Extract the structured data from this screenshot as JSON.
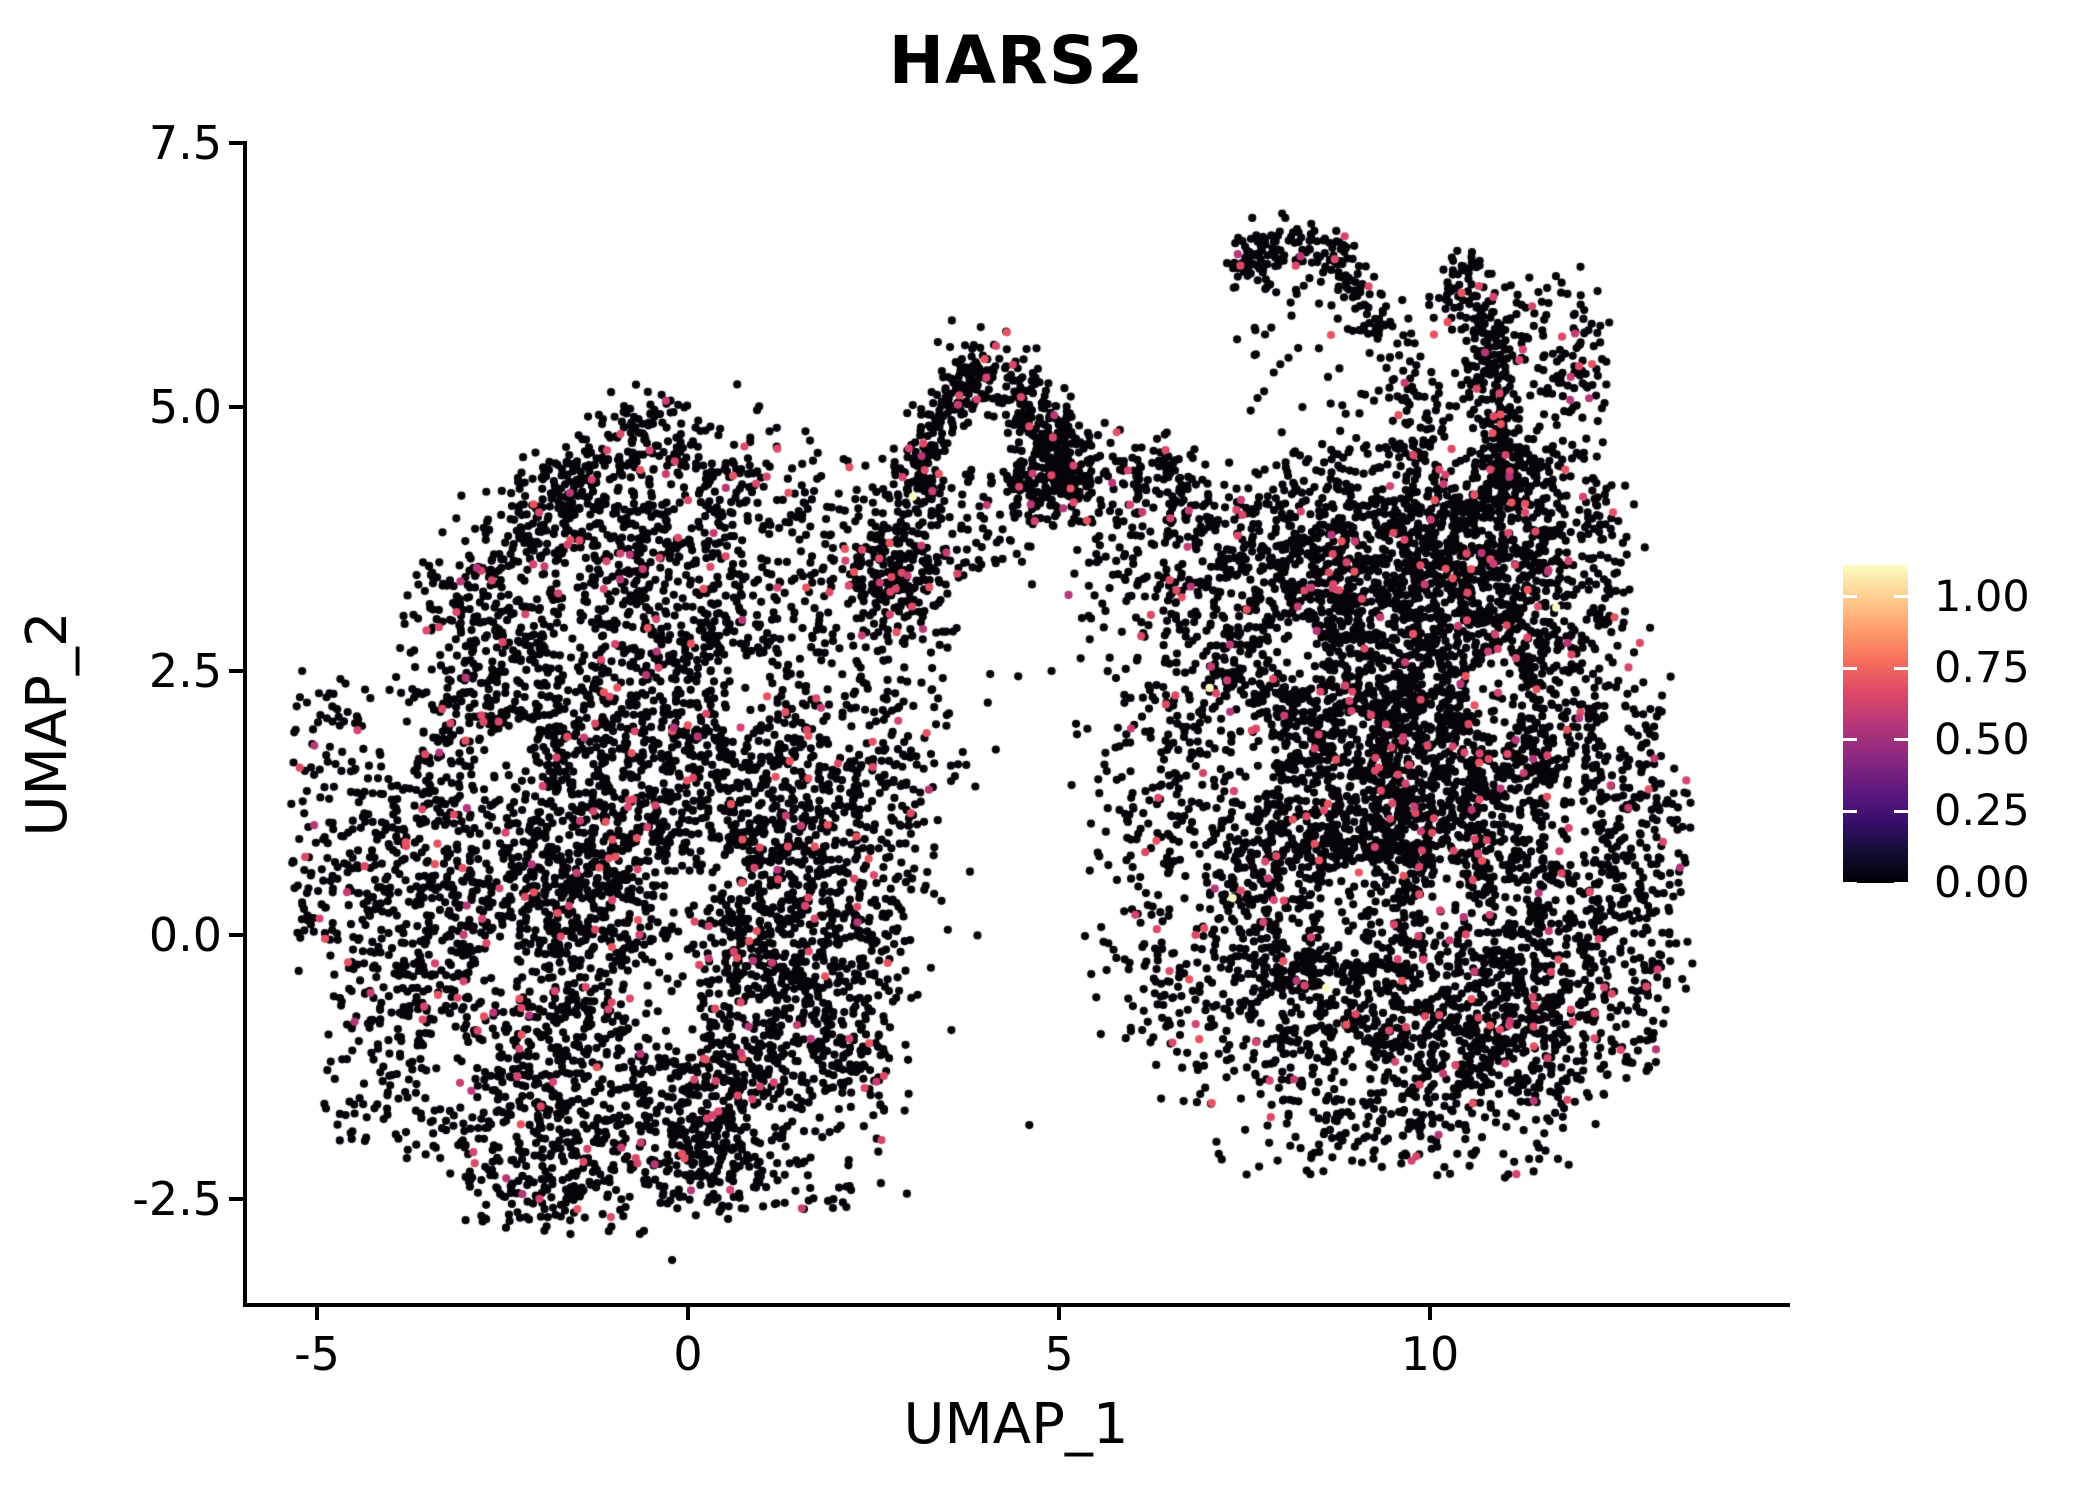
{
  "title": "HARS2",
  "axes": {
    "x": {
      "label": "UMAP_1",
      "tick_labels": [
        "-5",
        "0",
        "5",
        "10"
      ],
      "tick_values": [
        -5,
        0,
        5,
        10
      ]
    },
    "y": {
      "label": "UMAP_2",
      "tick_labels": [
        "7.5",
        "5.0",
        "2.5",
        "0.0",
        "-2.5"
      ],
      "tick_values": [
        7.5,
        5.0,
        2.5,
        0.0,
        -2.5
      ]
    }
  },
  "legend": {
    "tick_labels": [
      "1.00",
      "0.75",
      "0.50",
      "0.25",
      "0.00"
    ],
    "tick_values": [
      1.0,
      0.75,
      0.5,
      0.25,
      0.0
    ],
    "vmax": 1.11,
    "colormap": "magma",
    "gradient_stops": [
      "#000004",
      "#140e36",
      "#3b0f70",
      "#641a80",
      "#8c2981",
      "#b73779",
      "#de4968",
      "#f76f5c",
      "#fe9f6d",
      "#fecf92",
      "#fcfdbf"
    ]
  },
  "chart_data": {
    "type": "scatter",
    "title": "HARS2",
    "xlabel": "UMAP_1",
    "ylabel": "UMAP_2",
    "xlim": [
      -5.97,
      14.82
    ],
    "ylim": [
      -3.5,
      7.5
    ],
    "grid": false,
    "legend_position": "right",
    "point_radius_px": 4.1,
    "seed": 20240613,
    "colors": {
      "zero": "#050308",
      "low_mid": [
        "#de4968",
        "#e85362",
        "#d6456e",
        "#c83e72",
        "#b73779"
      ],
      "high": "#fbfcbf",
      "pink_fraction": 0.045
    },
    "clusters": [
      {
        "type": "blob",
        "cx": -1.15,
        "cy": 0.5,
        "rx": 2.9,
        "ry": 3.05,
        "n": 1600
      },
      {
        "type": "blob",
        "cx": 1.55,
        "cy": 1.1,
        "rx": 1.6,
        "ry": 2.45,
        "n": 700
      },
      {
        "type": "blob",
        "cx": -0.65,
        "cy": 3.7,
        "rx": 1.7,
        "ry": 1.2,
        "n": 470
      },
      {
        "type": "blob",
        "cx": -0.55,
        "cy": 4.7,
        "rx": 0.8,
        "ry": 0.5,
        "n": 95
      },
      {
        "type": "blob",
        "cx": -2.75,
        "cy": 2.3,
        "rx": 1.15,
        "ry": 1.05,
        "n": 210
      },
      {
        "type": "blob",
        "cx": -3.6,
        "cy": -0.3,
        "rx": 0.85,
        "ry": 1.9,
        "n": 260
      },
      {
        "type": "blob",
        "cx": -4.55,
        "cy": 0.9,
        "rx": 0.8,
        "ry": 1.5,
        "n": 130
      },
      {
        "type": "blob",
        "cx": -1.9,
        "cy": -1.6,
        "rx": 1.5,
        "ry": 1.0,
        "n": 290
      },
      {
        "type": "blob",
        "cx": 0.3,
        "cy": -1.7,
        "rx": 1.25,
        "ry": 0.9,
        "n": 260
      },
      {
        "type": "blob",
        "cx": 0.15,
        "cy": -2.2,
        "rx": 0.65,
        "ry": 0.4,
        "n": 70
      },
      {
        "type": "band",
        "pts": [
          [
            3.2,
            3.1
          ],
          [
            2.9,
            1.8
          ],
          [
            2.6,
            0.3
          ],
          [
            2.45,
            -1.2
          ],
          [
            2.3,
            -2.0
          ]
        ],
        "w": 0.45,
        "n": 230
      },
      {
        "type": "blob",
        "cx": 1.35,
        "cy": -0.4,
        "rx": 1.35,
        "ry": 1.6,
        "n": 350
      },
      {
        "type": "blob",
        "cx": -0.2,
        "cy": 1.9,
        "rx": 1.9,
        "ry": 1.25,
        "n": 420
      },
      {
        "type": "blob",
        "cx": -1.9,
        "cy": 0.4,
        "rx": 1.45,
        "ry": 1.5,
        "n": 330
      },
      {
        "type": "uniform",
        "x0": -5.35,
        "x1": -4.2,
        "y0": -0.5,
        "y1": 2.3,
        "n": 70
      },
      {
        "type": "uniform",
        "x0": -4.9,
        "x1": -3.9,
        "y0": -2.0,
        "y1": -0.5,
        "n": 45
      },
      {
        "type": "uniform",
        "x0": -3.0,
        "x1": -0.5,
        "y0": -2.85,
        "y1": -2.3,
        "n": 55
      },
      {
        "type": "uniform",
        "x0": 0.6,
        "x1": 2.2,
        "y0": -2.6,
        "y1": -2.1,
        "n": 40
      },
      {
        "type": "uniform",
        "x0": -2.4,
        "x1": -1.2,
        "y0": 3.5,
        "y1": 4.4,
        "n": 55
      },
      {
        "type": "uniform",
        "x0": -3.7,
        "x1": -2.4,
        "y0": 2.8,
        "y1": 3.5,
        "n": 50
      },
      {
        "type": "band",
        "pts": [
          [
            0.3,
            4.5
          ],
          [
            1.3,
            4.1
          ],
          [
            2.2,
            3.7
          ],
          [
            2.75,
            3.45
          ]
        ],
        "w": 0.35,
        "n": 170
      },
      {
        "type": "band",
        "pts": [
          [
            -1.3,
            4.35
          ],
          [
            -2.3,
            3.7
          ],
          [
            -3.3,
            3.05
          ]
        ],
        "w": 0.3,
        "n": 120
      },
      {
        "type": "arc",
        "cx": 4.1,
        "cy": 3.8,
        "rx": 1.05,
        "ry": 1.5,
        "a0": 165,
        "a1": 15,
        "w": 0.13,
        "n": 380
      },
      {
        "type": "band",
        "pts": [
          [
            3.15,
            4.45
          ],
          [
            3.0,
            3.85
          ],
          [
            2.9,
            3.2
          ]
        ],
        "w": 0.3,
        "n": 150
      },
      {
        "type": "uniform",
        "x0": 3.6,
        "x1": 4.7,
        "y0": 3.3,
        "y1": 4.5,
        "n": 70
      },
      {
        "type": "blob",
        "cx": 2.75,
        "cy": 3.3,
        "rx": 0.6,
        "ry": 0.6,
        "n": 120
      },
      {
        "type": "blob",
        "cx": 4.9,
        "cy": 4.4,
        "rx": 0.6,
        "ry": 0.55,
        "n": 200
      },
      {
        "type": "band",
        "pts": [
          [
            5.3,
            4.35
          ],
          [
            5.75,
            4.1
          ],
          [
            6.3,
            4.2
          ],
          [
            6.7,
            4.35
          ]
        ],
        "w": 0.3,
        "n": 130
      },
      {
        "type": "uniform",
        "x0": 5.2,
        "x1": 6.6,
        "y0": 2.9,
        "y1": 3.8,
        "n": 40
      },
      {
        "type": "blob",
        "cx": 9.6,
        "cy": 1.3,
        "rx": 2.85,
        "ry": 2.95,
        "n": 2100
      },
      {
        "type": "blob",
        "cx": 7.9,
        "cy": 3.3,
        "rx": 1.35,
        "ry": 1.25,
        "n": 420
      },
      {
        "type": "blob",
        "cx": 9.8,
        "cy": 4.0,
        "rx": 2.1,
        "ry": 0.8,
        "n": 420
      },
      {
        "type": "blob",
        "cx": 11.4,
        "cy": 3.55,
        "rx": 1.35,
        "ry": 1.1,
        "n": 380
      },
      {
        "type": "blob",
        "cx": 12.45,
        "cy": 0.6,
        "rx": 0.95,
        "ry": 2.2,
        "n": 420
      },
      {
        "type": "blob",
        "cx": 9.4,
        "cy": -1.0,
        "rx": 2.3,
        "ry": 1.15,
        "n": 560
      },
      {
        "type": "band",
        "pts": [
          [
            6.6,
            3.4
          ],
          [
            6.35,
            2.0
          ],
          [
            6.3,
            0.5
          ],
          [
            6.55,
            -0.9
          ]
        ],
        "w": 0.5,
        "n": 280
      },
      {
        "type": "blob",
        "cx": 8.6,
        "cy": 1.0,
        "rx": 1.5,
        "ry": 1.7,
        "n": 600
      },
      {
        "type": "blob",
        "cx": 10.7,
        "cy": 1.6,
        "rx": 1.5,
        "ry": 1.6,
        "n": 600
      },
      {
        "type": "blob",
        "cx": 9.7,
        "cy": 2.9,
        "rx": 1.8,
        "ry": 1.05,
        "n": 460
      },
      {
        "type": "blob",
        "cx": 11.3,
        "cy": -0.9,
        "rx": 1.15,
        "ry": 0.9,
        "n": 260
      },
      {
        "type": "uniform",
        "x0": 6.2,
        "x1": 7.2,
        "y0": -1.6,
        "y1": 0.0,
        "n": 45
      },
      {
        "type": "uniform",
        "x0": 12.8,
        "x1": 13.55,
        "y0": -0.6,
        "y1": 1.6,
        "n": 45
      },
      {
        "type": "uniform",
        "x0": 7.0,
        "x1": 12.0,
        "y0": -2.3,
        "y1": -1.7,
        "n": 60
      },
      {
        "type": "uniform",
        "x0": 6.4,
        "x1": 7.4,
        "y0": 3.5,
        "y1": 4.6,
        "n": 45
      },
      {
        "type": "band",
        "pts": [
          [
            10.32,
            6.38
          ],
          [
            10.58,
            6.05
          ],
          [
            10.85,
            5.35
          ],
          [
            11.0,
            4.7
          ],
          [
            11.08,
            4.05
          ]
        ],
        "w": 0.2,
        "n": 290
      },
      {
        "type": "band",
        "pts": [
          [
            7.35,
            6.3
          ],
          [
            7.8,
            6.5
          ],
          [
            8.45,
            6.55
          ],
          [
            8.85,
            6.35
          ],
          [
            9.15,
            6.0
          ],
          [
            9.35,
            5.6
          ]
        ],
        "w": 0.14,
        "n": 190
      },
      {
        "type": "band",
        "pts": [
          [
            9.4,
            5.5
          ],
          [
            9.8,
            5.1
          ],
          [
            10.15,
            4.8
          ]
        ],
        "w": 0.3,
        "n": 45
      },
      {
        "type": "blob",
        "cx": 11.5,
        "cy": 5.7,
        "rx": 0.95,
        "ry": 0.6,
        "n": 60
      },
      {
        "type": "blob",
        "cx": 11.85,
        "cy": 4.95,
        "rx": 0.55,
        "ry": 0.65,
        "n": 50
      },
      {
        "type": "uniform",
        "x0": 9.3,
        "x1": 11.3,
        "y0": 4.45,
        "y1": 6.2,
        "n": 55
      },
      {
        "type": "uniform",
        "x0": 7.4,
        "x1": 9.3,
        "y0": 4.9,
        "y1": 6.25,
        "n": 40
      },
      {
        "type": "uniform",
        "x0": 11.2,
        "x1": 12.4,
        "y0": 5.2,
        "y1": 6.1,
        "n": 35
      }
    ],
    "voids": [
      [
        -0.3,
        -0.55,
        0.45,
        0.5
      ],
      [
        -2.5,
        1.6,
        0.42,
        0.35
      ],
      [
        0.7,
        2.3,
        0.35,
        0.42
      ],
      [
        -3.2,
        -1.2,
        0.35,
        0.45
      ],
      [
        9.0,
        0.2,
        0.5,
        0.45
      ],
      [
        10.9,
        2.3,
        0.4,
        0.4
      ],
      [
        8.2,
        2.7,
        0.35,
        0.3
      ],
      [
        11.9,
        1.1,
        0.35,
        0.5
      ],
      [
        8.9,
        -1.25,
        0.45,
        0.3
      ],
      [
        -1.5,
        2.9,
        0.3,
        0.3
      ],
      [
        10.2,
        0.35,
        0.35,
        0.35
      ],
      [
        7.6,
        1.6,
        0.3,
        0.35
      ],
      [
        0.2,
        0.6,
        0.3,
        0.35
      ],
      [
        -2.6,
        -0.4,
        0.3,
        0.3
      ]
    ],
    "singletons": [
      [
        4.45,
        2.45
      ],
      [
        4.9,
        2.5
      ],
      [
        4.04,
        2.2
      ],
      [
        5.23,
        2.0
      ],
      [
        5.17,
        1.42
      ],
      [
        5.92,
        0.92
      ],
      [
        5.35,
        -0.01
      ],
      [
        5.97,
        -0.91
      ],
      [
        6.31,
        -1.23
      ],
      [
        3.8,
        0.6
      ],
      [
        3.55,
        -0.9
      ],
      [
        2.95,
        -2.45
      ],
      [
        3.3,
        1.4
      ],
      [
        6.05,
        2.6
      ],
      [
        4.6,
        -1.8
      ],
      [
        -4.9,
        -1.6
      ],
      [
        -5.2,
        2.5
      ],
      [
        2.6,
        -2.35
      ]
    ],
    "high_expression_points": [
      [
        3.03,
        4.15
      ],
      [
        7.03,
        2.34
      ],
      [
        7.34,
        0.35
      ],
      [
        10.9,
        1.9
      ],
      [
        8.6,
        -0.5
      ],
      [
        11.7,
        3.1
      ]
    ]
  }
}
